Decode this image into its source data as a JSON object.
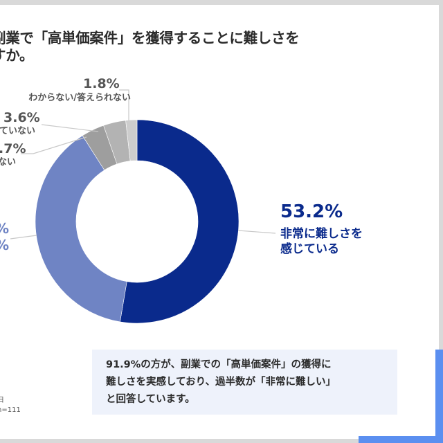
{
  "title": {
    "line1": "副業で「高単価案件」を獲得することに難しさを",
    "line2": "すか。"
  },
  "chart_data": {
    "type": "pie",
    "subtype": "donut",
    "title": "副業で「高単価案件」を獲得することに難しさを感じていますか。",
    "start_angle_deg": 0,
    "direction": "clockwise",
    "slices": [
      {
        "label": "非常に難しさを感じている",
        "value": 53.2,
        "color": "#0a2a8c"
      },
      {
        "label": "(label cropped)",
        "value": 38.7,
        "color": "#6f84c4"
      },
      {
        "label": "…ない",
        "value": 3.7,
        "color": "#9e9e9e"
      },
      {
        "label": "…ていない",
        "value": 3.6,
        "color": "#b3b3b3"
      },
      {
        "label": "わからない/答えられない",
        "value": 1.8,
        "color": "#cdcdcd"
      }
    ],
    "legend": "none (callout labels)"
  },
  "labels": {
    "s1_pct": "53.2%",
    "s1_cat_line1": "非常に難しさを",
    "s1_cat_line2": "感じている",
    "s2_pct": "%",
    "s2_pct_b": "%",
    "s3_pct": ".7%",
    "s3_cat": "ない",
    "s4_pct": "3.6%",
    "s4_cat": "ていない",
    "s5_pct": "1.8%",
    "s5_cat": "わからない/答えられない"
  },
  "note": {
    "line1": "91.9%の方が、副業での「高単価案件」の獲得に",
    "line2": "難しさを実感しており、過半数が「非常に難しい」",
    "line3": "と回答しています。"
  },
  "source": {
    "line1": "日",
    "line2": "n=111"
  },
  "colors": {
    "accent": "#5b8ff0",
    "dark_navy": "#0a2a8c",
    "periwinkle": "#6f84c4",
    "note_bg": "#eef2fb"
  }
}
